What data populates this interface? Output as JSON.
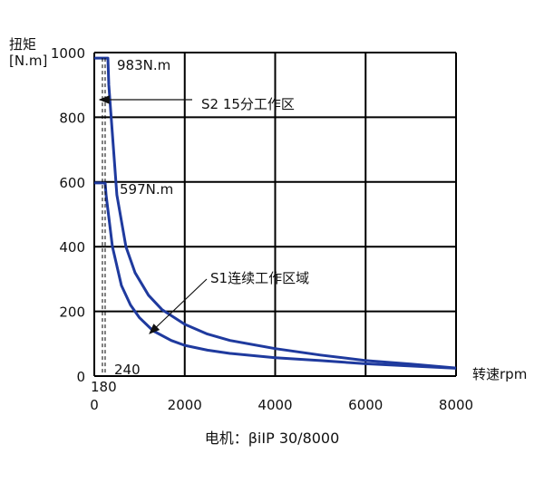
{
  "chart_data": {
    "type": "line",
    "ylabel": "扭矩",
    "yunit": "[N.m]",
    "xlabel": "转速rpm",
    "caption": "电机：βiIP 30/8000",
    "xlim": [
      0,
      8000
    ],
    "ylim": [
      0,
      1000
    ],
    "xticks": [
      0,
      2000,
      4000,
      6000,
      8000
    ],
    "yticks": [
      0,
      200,
      400,
      600,
      800,
      1000
    ],
    "grid": true,
    "series": [
      {
        "name": "S2 15分工作区",
        "color": "#1f3a9e",
        "x": [
          0,
          300,
          320,
          500,
          700,
          900,
          1200,
          1500,
          2000,
          2500,
          3000,
          4000,
          5000,
          6000,
          7000,
          8000
        ],
        "y": [
          983,
          983,
          900,
          560,
          400,
          320,
          250,
          205,
          160,
          130,
          110,
          85,
          65,
          48,
          37,
          25
        ]
      },
      {
        "name": "S1连续工作区域",
        "color": "#1f3a9e",
        "x": [
          0,
          240,
          260,
          400,
          600,
          800,
          1000,
          1300,
          1700,
          2000,
          2500,
          3000,
          4000,
          5000,
          6000,
          7000,
          8000
        ],
        "y": [
          597,
          597,
          560,
          400,
          280,
          220,
          180,
          140,
          110,
          95,
          80,
          70,
          57,
          48,
          38,
          31,
          24
        ]
      }
    ],
    "annotations": [
      {
        "text": "983N.m"
      },
      {
        "text": "597N.m"
      },
      {
        "text": "S2 15分工作区"
      },
      {
        "text": "S1连续工作区域"
      },
      {
        "text": "180"
      },
      {
        "text": "240"
      }
    ]
  }
}
